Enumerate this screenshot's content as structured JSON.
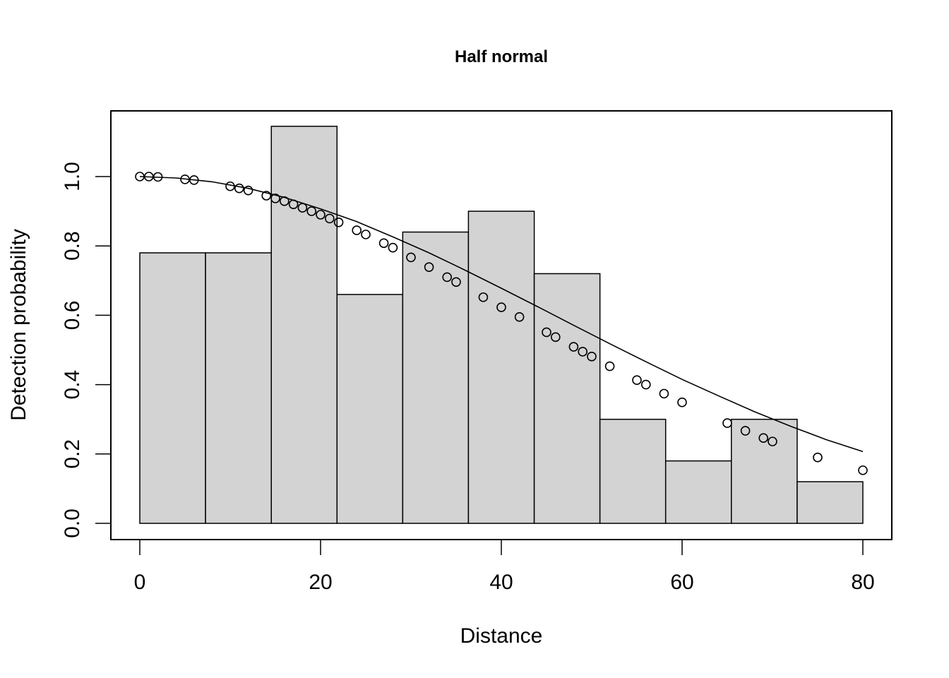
{
  "chart_data": {
    "type": "bar",
    "title": "Half normal",
    "xlabel": "Distance",
    "ylabel": "Detection probability",
    "xlim": [
      0,
      80
    ],
    "ylim": [
      0,
      1.15
    ],
    "grid": false,
    "legend": "none",
    "x_ticks": [
      "0",
      "20",
      "40",
      "60",
      "80"
    ],
    "y_ticks": [
      "0.0",
      "0.2",
      "0.4",
      "0.6",
      "0.8",
      "1.0"
    ],
    "histogram": {
      "bin_edges": [
        0,
        7.27,
        14.55,
        21.82,
        29.09,
        36.36,
        43.64,
        50.91,
        58.18,
        65.45,
        72.73,
        80
      ],
      "values": [
        0.78,
        0.78,
        1.145,
        0.66,
        0.84,
        0.9,
        0.72,
        0.3,
        0.18,
        0.3,
        0.12
      ],
      "fill_color": "#d3d3d3",
      "edge_color": "#000000"
    },
    "detection_function": {
      "type": "line",
      "name": "Half normal",
      "x": [
        0,
        4,
        8,
        12,
        16,
        20,
        24,
        28,
        32,
        36,
        40,
        44,
        48,
        52,
        56,
        60,
        64,
        68,
        72,
        76,
        80
      ],
      "y": [
        1.0,
        0.996,
        0.985,
        0.966,
        0.94,
        0.907,
        0.87,
        0.826,
        0.78,
        0.73,
        0.678,
        0.625,
        0.571,
        0.518,
        0.466,
        0.415,
        0.368,
        0.322,
        0.28,
        0.241,
        0.207
      ],
      "color": "#000000"
    },
    "observations": {
      "type": "scatter",
      "x": [
        0,
        1,
        2,
        5,
        6,
        10,
        11,
        12,
        14,
        15,
        16,
        17,
        18,
        19,
        20,
        21,
        22,
        24,
        25,
        27,
        28,
        30,
        32,
        34,
        35,
        38,
        40,
        42,
        45,
        46,
        48,
        49,
        50,
        52,
        55,
        56,
        58,
        60,
        65,
        67,
        69,
        70,
        75,
        80
      ],
      "y": [
        1.0,
        1.0,
        0.999,
        0.992,
        0.99,
        0.972,
        0.966,
        0.96,
        0.945,
        0.937,
        0.929,
        0.92,
        0.91,
        0.9,
        0.89,
        0.879,
        0.868,
        0.845,
        0.833,
        0.808,
        0.795,
        0.767,
        0.739,
        0.71,
        0.696,
        0.652,
        0.623,
        0.595,
        0.551,
        0.537,
        0.509,
        0.495,
        0.481,
        0.453,
        0.413,
        0.4,
        0.374,
        0.349,
        0.289,
        0.267,
        0.246,
        0.236,
        0.19,
        0.153
      ],
      "marker": "open-circle",
      "color": "#000000"
    }
  }
}
